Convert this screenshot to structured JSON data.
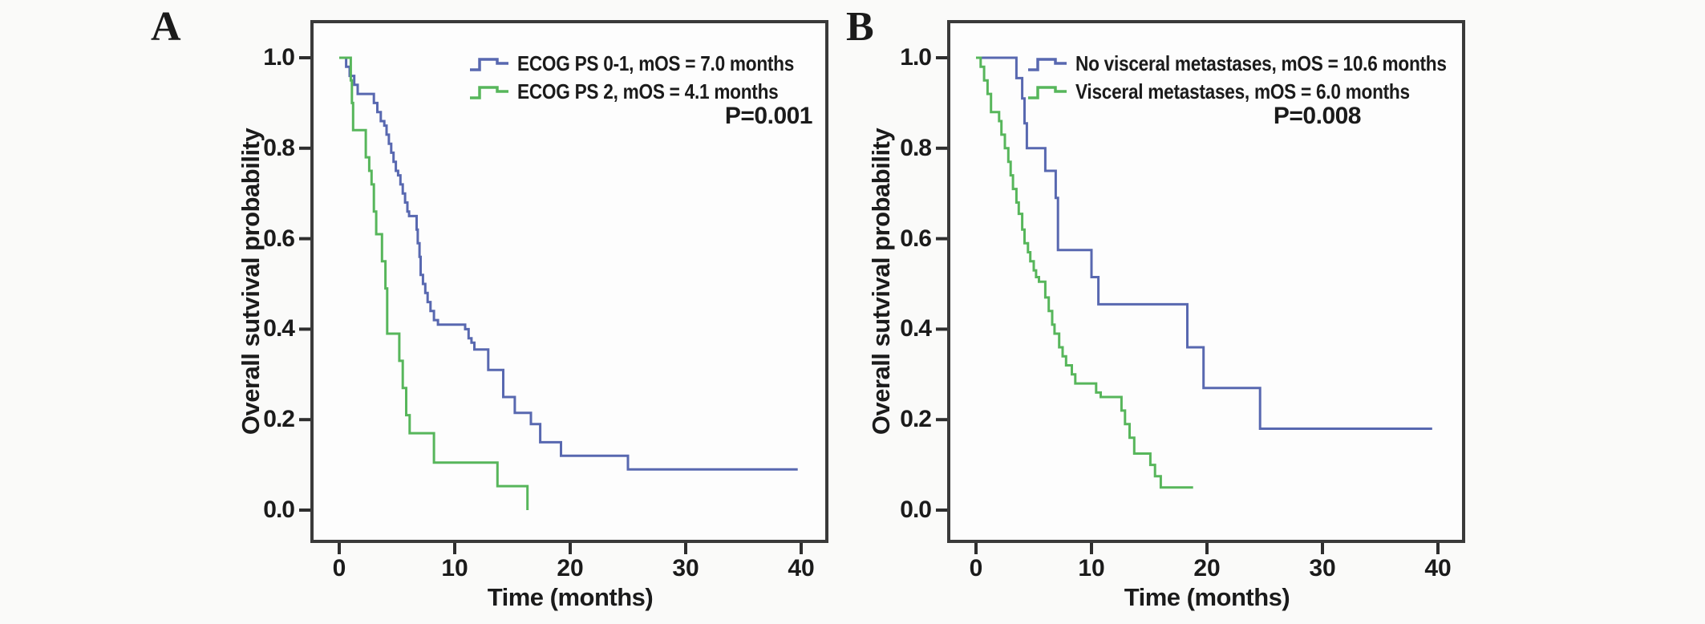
{
  "figure": {
    "background_color": "#fafaf9",
    "frame_color": "#3a3a3a",
    "plot_fill_color": "#fdfdfd",
    "text_color": "#1b1b1b",
    "panels": [
      {
        "letter": "A"
      },
      {
        "letter": "B"
      }
    ]
  },
  "chart_data": [
    {
      "type": "line",
      "subtype": "kaplan-meier-step",
      "panel": "A",
      "title": "",
      "xlabel": "Time (months)",
      "ylabel": "Overall sutvival probability",
      "annotation": "P=0.001",
      "legend_position": "top-right-inside",
      "grid": false,
      "x_ticks": [
        0,
        10,
        20,
        30,
        40
      ],
      "y_ticks": [
        "1.0",
        "0.8",
        "0.6",
        "0.4",
        "0.2",
        "0.0"
      ],
      "xlim": [
        -2.4,
        42.2
      ],
      "ylim": [
        -0.07,
        1.08
      ],
      "series": [
        {
          "name": "ECOG PS 0-1, mOS = 7.0 months",
          "color": "#5868b0",
          "median_os_months": 7.0,
          "end_time": 39.7,
          "points": [
            [
              0,
              1.0
            ],
            [
              0.6,
              0.98
            ],
            [
              0.9,
              0.96
            ],
            [
              1.3,
              0.94
            ],
            [
              1.6,
              0.92
            ],
            [
              3.0,
              0.9
            ],
            [
              3.3,
              0.88
            ],
            [
              3.6,
              0.86
            ],
            [
              3.9,
              0.85
            ],
            [
              4.1,
              0.83
            ],
            [
              4.3,
              0.81
            ],
            [
              4.5,
              0.79
            ],
            [
              4.7,
              0.77
            ],
            [
              4.9,
              0.75
            ],
            [
              5.1,
              0.74
            ],
            [
              5.3,
              0.72
            ],
            [
              5.5,
              0.7
            ],
            [
              5.7,
              0.68
            ],
            [
              5.9,
              0.66
            ],
            [
              6.05,
              0.65
            ],
            [
              6.7,
              0.62
            ],
            [
              6.8,
              0.59
            ],
            [
              6.95,
              0.56
            ],
            [
              7.05,
              0.52
            ],
            [
              7.25,
              0.5
            ],
            [
              7.45,
              0.48
            ],
            [
              7.65,
              0.46
            ],
            [
              7.9,
              0.44
            ],
            [
              8.2,
              0.42
            ],
            [
              8.55,
              0.41
            ],
            [
              10.9,
              0.4
            ],
            [
              11.2,
              0.38
            ],
            [
              11.45,
              0.37
            ],
            [
              11.7,
              0.355
            ],
            [
              12.9,
              0.31
            ],
            [
              14.2,
              0.25
            ],
            [
              15.2,
              0.215
            ],
            [
              16.6,
              0.19
            ],
            [
              17.4,
              0.15
            ],
            [
              19.2,
              0.12
            ],
            [
              25.0,
              0.09
            ]
          ]
        },
        {
          "name": "ECOG PS 2, mOS = 4.1 months",
          "color": "#57b65b",
          "median_os_months": 4.1,
          "end_time": 16.3,
          "points": [
            [
              0,
              1.0
            ],
            [
              1.0,
              0.95
            ],
            [
              1.1,
              0.9
            ],
            [
              1.2,
              0.84
            ],
            [
              2.3,
              0.78
            ],
            [
              2.6,
              0.75
            ],
            [
              2.8,
              0.72
            ],
            [
              3.0,
              0.66
            ],
            [
              3.2,
              0.61
            ],
            [
              3.7,
              0.55
            ],
            [
              4.0,
              0.49
            ],
            [
              4.15,
              0.39
            ],
            [
              5.2,
              0.33
            ],
            [
              5.5,
              0.27
            ],
            [
              5.8,
              0.21
            ],
            [
              6.1,
              0.17
            ],
            [
              8.2,
              0.105
            ],
            [
              13.7,
              0.053
            ],
            [
              16.3,
              0.0
            ]
          ]
        }
      ]
    },
    {
      "type": "line",
      "subtype": "kaplan-meier-step",
      "panel": "B",
      "title": "",
      "xlabel": "Time (months)",
      "ylabel": "Overall sutvival probability",
      "annotation": "P=0.008",
      "legend_position": "top-right-inside",
      "grid": false,
      "x_ticks": [
        0,
        10,
        20,
        30,
        40
      ],
      "y_ticks": [
        "1.0",
        "0.8",
        "0.6",
        "0.4",
        "0.2",
        "0.0"
      ],
      "xlim": [
        -2.4,
        42.2
      ],
      "ylim": [
        -0.07,
        1.08
      ],
      "series": [
        {
          "name": "No visceral metastases, mOS = 10.6 months",
          "color": "#5868b0",
          "median_os_months": 10.6,
          "end_time": 39.5,
          "points": [
            [
              0,
              1.0
            ],
            [
              3.5,
              0.955
            ],
            [
              4.0,
              0.91
            ],
            [
              4.2,
              0.855
            ],
            [
              4.4,
              0.8
            ],
            [
              6.0,
              0.75
            ],
            [
              6.9,
              0.69
            ],
            [
              7.1,
              0.575
            ],
            [
              10.0,
              0.515
            ],
            [
              10.6,
              0.455
            ],
            [
              18.3,
              0.36
            ],
            [
              19.7,
              0.27
            ],
            [
              24.6,
              0.18
            ]
          ]
        },
        {
          "name": "Visceral metastases, mOS = 6.0 months",
          "color": "#57b65b",
          "median_os_months": 6.0,
          "end_time": 18.8,
          "points": [
            [
              0,
              1.0
            ],
            [
              0.4,
              0.98
            ],
            [
              0.7,
              0.95
            ],
            [
              1.0,
              0.92
            ],
            [
              1.3,
              0.88
            ],
            [
              2.0,
              0.86
            ],
            [
              2.2,
              0.83
            ],
            [
              2.5,
              0.8
            ],
            [
              2.8,
              0.77
            ],
            [
              3.0,
              0.74
            ],
            [
              3.2,
              0.71
            ],
            [
              3.5,
              0.68
            ],
            [
              3.7,
              0.655
            ],
            [
              4.0,
              0.62
            ],
            [
              4.2,
              0.59
            ],
            [
              4.5,
              0.57
            ],
            [
              4.7,
              0.55
            ],
            [
              5.0,
              0.53
            ],
            [
              5.2,
              0.515
            ],
            [
              5.45,
              0.505
            ],
            [
              6.0,
              0.47
            ],
            [
              6.3,
              0.44
            ],
            [
              6.6,
              0.41
            ],
            [
              6.8,
              0.39
            ],
            [
              7.2,
              0.36
            ],
            [
              7.5,
              0.34
            ],
            [
              7.8,
              0.32
            ],
            [
              8.3,
              0.3
            ],
            [
              8.6,
              0.28
            ],
            [
              10.4,
              0.26
            ],
            [
              10.8,
              0.25
            ],
            [
              12.6,
              0.22
            ],
            [
              12.9,
              0.19
            ],
            [
              13.3,
              0.16
            ],
            [
              13.7,
              0.125
            ],
            [
              15.1,
              0.1
            ],
            [
              15.5,
              0.075
            ],
            [
              16.0,
              0.05
            ]
          ]
        }
      ]
    }
  ]
}
